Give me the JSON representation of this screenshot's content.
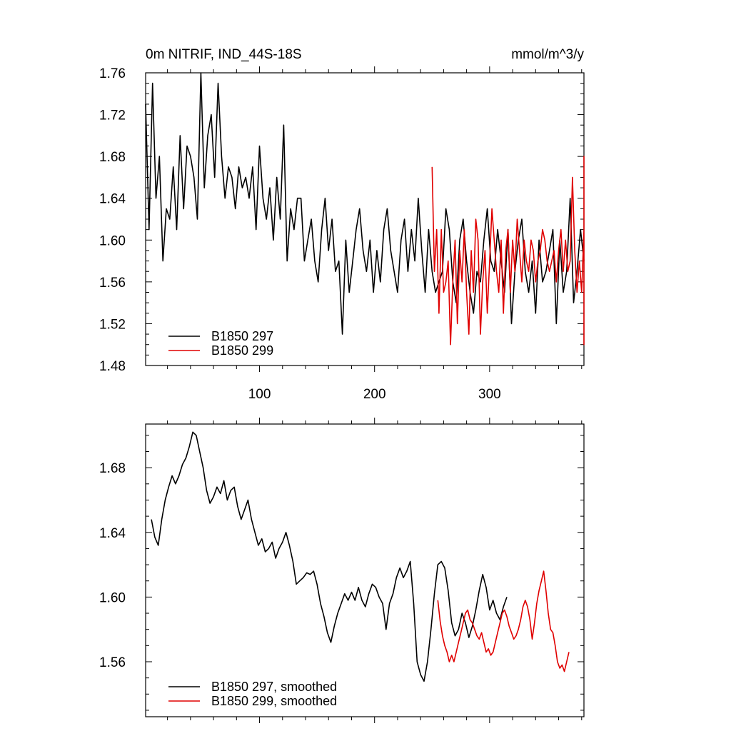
{
  "chart_data": [
    {
      "type": "line",
      "title": "0m NITRIF, IND_44S-18S",
      "units": "mmol/m^3/y",
      "xlim": [
        1,
        382
      ],
      "ylim": [
        1.48,
        1.76
      ],
      "xticks": [
        100,
        200,
        300
      ],
      "yticks": [
        1.48,
        1.52,
        1.56,
        1.6,
        1.64,
        1.68,
        1.72,
        1.76
      ],
      "ytick_labels": [
        "1.48",
        "1.52",
        "1.56",
        "1.60",
        "1.64",
        "1.68",
        "1.72",
        "1.76"
      ],
      "xtick_labels": [
        "100",
        "200",
        "300"
      ],
      "legend": [
        "B1850 297",
        "B1850 299"
      ],
      "series": [
        {
          "name": "B1850 297",
          "color": "#000000",
          "x_start": 1,
          "x_step": 3,
          "values": [
            1.73,
            1.61,
            1.75,
            1.64,
            1.68,
            1.58,
            1.63,
            1.62,
            1.67,
            1.61,
            1.7,
            1.63,
            1.69,
            1.68,
            1.66,
            1.62,
            1.76,
            1.65,
            1.7,
            1.72,
            1.66,
            1.75,
            1.68,
            1.64,
            1.67,
            1.66,
            1.63,
            1.67,
            1.65,
            1.66,
            1.64,
            1.67,
            1.61,
            1.69,
            1.64,
            1.62,
            1.65,
            1.6,
            1.66,
            1.62,
            1.71,
            1.58,
            1.63,
            1.61,
            1.64,
            1.64,
            1.58,
            1.6,
            1.62,
            1.58,
            1.56,
            1.61,
            1.64,
            1.59,
            1.62,
            1.57,
            1.58,
            1.51,
            1.6,
            1.55,
            1.58,
            1.61,
            1.63,
            1.59,
            1.57,
            1.6,
            1.55,
            1.59,
            1.56,
            1.61,
            1.63,
            1.59,
            1.57,
            1.55,
            1.6,
            1.62,
            1.57,
            1.61,
            1.58,
            1.64,
            1.59,
            1.55,
            1.61,
            1.57,
            1.55,
            1.56,
            1.57,
            1.63,
            1.61,
            1.56,
            1.54,
            1.6,
            1.62,
            1.58,
            1.55,
            1.53,
            1.57,
            1.56,
            1.6,
            1.63,
            1.58,
            1.57,
            1.61,
            1.58,
            1.55,
            1.61,
            1.52,
            1.57,
            1.6,
            1.62,
            1.57,
            1.55,
            1.58,
            1.53,
            1.6,
            1.56,
            1.57,
            1.59,
            1.61,
            1.52,
            1.6,
            1.55,
            1.57,
            1.64,
            1.54,
            1.57,
            1.61,
            1.58
          ]
        },
        {
          "name": "B1850 299",
          "color": "#e00000",
          "x_start": 250,
          "x_step": 2,
          "values": [
            1.67,
            1.57,
            1.61,
            1.53,
            1.61,
            1.55,
            1.56,
            1.58,
            1.5,
            1.56,
            1.6,
            1.52,
            1.59,
            1.56,
            1.61,
            1.55,
            1.51,
            1.59,
            1.55,
            1.62,
            1.6,
            1.51,
            1.56,
            1.59,
            1.53,
            1.58,
            1.63,
            1.6,
            1.57,
            1.55,
            1.6,
            1.53,
            1.59,
            1.61,
            1.55,
            1.6,
            1.57,
            1.62,
            1.59,
            1.56,
            1.6,
            1.58,
            1.57,
            1.6,
            1.59,
            1.56,
            1.58,
            1.59,
            1.61,
            1.6,
            1.58,
            1.57,
            1.58,
            1.59,
            1.56,
            1.59,
            1.61,
            1.57,
            1.6,
            1.57,
            1.58,
            1.66,
            1.59,
            1.55,
            1.58,
            1.55,
            1.61,
            1.57,
            1.6,
            1.56,
            1.68,
            1.63,
            1.61,
            1.64,
            1.58,
            1.56,
            1.59,
            1.57,
            1.61,
            1.62,
            1.55,
            1.59,
            1.55,
            1.58,
            1.59,
            1.6,
            1.57,
            1.59,
            1.54,
            1.57,
            1.59,
            1.57,
            1.59,
            1.63,
            1.55,
            1.58,
            1.61,
            1.55,
            1.58,
            1.57,
            1.6,
            1.55,
            1.59,
            1.58,
            1.54,
            1.6,
            1.5,
            1.6
          ]
        }
      ]
    },
    {
      "type": "line",
      "title": "",
      "xlim": [
        1,
        382
      ],
      "ylim": [
        1.526,
        1.707
      ],
      "xticks": [
        100,
        200,
        300
      ],
      "yticks": [
        1.56,
        1.6,
        1.64,
        1.68
      ],
      "ytick_labels": [
        "1.56",
        "1.60",
        "1.64",
        "1.68"
      ],
      "legend": [
        "B1850 297, smoothed",
        "B1850 299, smoothed"
      ],
      "series": [
        {
          "name": "B1850 297, smoothed",
          "color": "#000000",
          "x_start": 6,
          "x_step": 3,
          "values": [
            1.648,
            1.637,
            1.632,
            1.648,
            1.66,
            1.668,
            1.675,
            1.67,
            1.675,
            1.682,
            1.686,
            1.693,
            1.702,
            1.7,
            1.69,
            1.68,
            1.666,
            1.658,
            1.662,
            1.668,
            1.664,
            1.672,
            1.66,
            1.666,
            1.668,
            1.656,
            1.648,
            1.654,
            1.66,
            1.648,
            1.64,
            1.632,
            1.636,
            1.628,
            1.63,
            1.634,
            1.624,
            1.63,
            1.634,
            1.64,
            1.632,
            1.622,
            1.608,
            1.61,
            1.612,
            1.615,
            1.614,
            1.616,
            1.608,
            1.596,
            1.588,
            1.578,
            1.572,
            1.582,
            1.59,
            1.596,
            1.602,
            1.598,
            1.603,
            1.598,
            1.606,
            1.598,
            1.594,
            1.602,
            1.608,
            1.606,
            1.6,
            1.596,
            1.58,
            1.596,
            1.602,
            1.612,
            1.618,
            1.612,
            1.616,
            1.622,
            1.596,
            1.56,
            1.552,
            1.548,
            1.56,
            1.58,
            1.602,
            1.62,
            1.622,
            1.618,
            1.604,
            1.584,
            1.576,
            1.58,
            1.59,
            1.584,
            1.575,
            1.582,
            1.592,
            1.604,
            1.614,
            1.606,
            1.592,
            1.598,
            1.59,
            1.586,
            1.594,
            1.6
          ]
        },
        {
          "name": "B1850 299, smoothed",
          "color": "#e00000",
          "x_start": 255,
          "x_step": 2,
          "values": [
            1.598,
            1.585,
            1.576,
            1.57,
            1.566,
            1.56,
            1.564,
            1.56,
            1.566,
            1.572,
            1.578,
            1.584,
            1.59,
            1.592,
            1.586,
            1.584,
            1.58,
            1.576,
            1.574,
            1.578,
            1.572,
            1.566,
            1.568,
            1.564,
            1.566,
            1.572,
            1.578,
            1.584,
            1.59,
            1.592,
            1.588,
            1.582,
            1.578,
            1.574,
            1.576,
            1.58,
            1.586,
            1.594,
            1.598,
            1.594,
            1.586,
            1.574,
            1.584,
            1.596,
            1.604,
            1.61,
            1.616,
            1.604,
            1.59,
            1.58,
            1.578,
            1.57,
            1.56,
            1.556,
            1.558,
            1.554,
            1.56,
            1.566
          ]
        }
      ]
    }
  ]
}
